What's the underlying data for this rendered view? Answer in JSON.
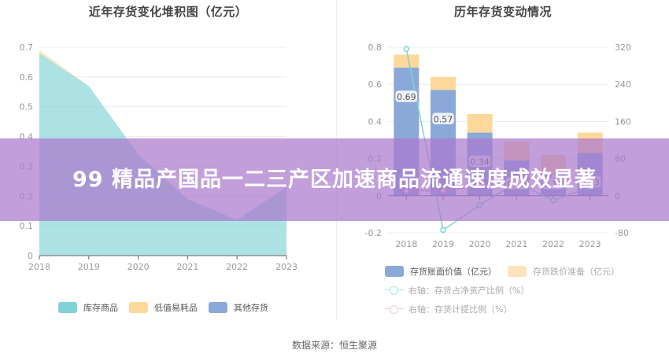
{
  "left_chart": {
    "title": "近年存货变化堆积图（亿元）",
    "legend": [
      {
        "label": "库存商品",
        "color": "#7fd3d6"
      },
      {
        "label": "低值易耗品",
        "color": "#fdd89a"
      },
      {
        "label": "其他存货",
        "color": "#8aa9d9"
      }
    ]
  },
  "right_chart": {
    "title": "历年存货变动情况",
    "legend": [
      {
        "label": "存货账面价值（亿元）",
        "color": "#8aa9d9"
      },
      {
        "label": "存货跌价准备（亿元）",
        "color": "#fde4bd"
      },
      {
        "label": "右轴：存货占净资产比例（%）",
        "color": "#a8e6e6"
      },
      {
        "label": "右轴：存货计提比例（%）",
        "color": "#f0c8dc"
      }
    ]
  },
  "overlay": {
    "text": "99 精品产国品一二三产区加速商品流通速度成效显著"
  },
  "footer": {
    "source": "数据来源：恒生聚源"
  },
  "chart_data": [
    {
      "type": "area",
      "title": "近年存货变化堆积图（亿元）",
      "xlabel": "",
      "ylabel": "",
      "x": [
        "2018",
        "2019",
        "2020",
        "2021",
        "2022",
        "2023"
      ],
      "ylim": [
        0,
        0.7
      ],
      "yticks": [
        "0",
        "0.1",
        "0.2",
        "0.3",
        "0.4",
        "0.5",
        "0.6",
        "0.7"
      ],
      "grid": true,
      "stacked": true,
      "legend_position": "bottom",
      "series": [
        {
          "name": "库存商品",
          "values": [
            0.68,
            0.57,
            0.34,
            0.19,
            0.12,
            0.23
          ],
          "color": "#7fd3d6"
        },
        {
          "name": "低值易耗品",
          "values": [
            0.01,
            0.0,
            0.0,
            0.0,
            0.0,
            0.0
          ],
          "color": "#fdd89a"
        },
        {
          "name": "其他存货",
          "values": [
            0.0,
            0.0,
            0.0,
            0.0,
            0.0,
            0.0
          ],
          "color": "#8aa9d9"
        }
      ]
    },
    {
      "type": "bar",
      "title": "历年存货变动情况",
      "categories": [
        "2018",
        "2019",
        "2020",
        "2021",
        "2022",
        "2023"
      ],
      "ylim": [
        -0.2,
        0.8
      ],
      "yticks": [
        "-0.2",
        "0",
        "0.2",
        "0.4",
        "0.6",
        "0.8"
      ],
      "y2lim": [
        -80,
        320
      ],
      "y2ticks": [
        "-80",
        "0",
        "80",
        "160",
        "240",
        "320"
      ],
      "grid": true,
      "stacked": true,
      "legend_position": "bottom",
      "series": [
        {
          "name": "存货账面价值（亿元）",
          "type": "bar",
          "axis": "left",
          "values": [
            0.69,
            0.57,
            0.34,
            0.19,
            0.12,
            0.23
          ],
          "labels": [
            "0.69",
            "0.57",
            "0.34",
            "0.19",
            "0.12",
            "0.23"
          ],
          "color": "#8aa9d9"
        },
        {
          "name": "存货跌价准备（亿元）",
          "type": "bar",
          "axis": "left",
          "values": [
            0.07,
            0.07,
            0.1,
            0.1,
            0.1,
            0.11
          ],
          "color": "#fdd89a"
        },
        {
          "name": "右轴：存货占净资产比例（%）",
          "type": "line",
          "axis": "right",
          "values": [
            316,
            -74,
            -20,
            28,
            -10,
            18
          ],
          "color": "#7fd3d6"
        },
        {
          "name": "右轴：存货计提比例（%）",
          "type": "line",
          "axis": "right",
          "values": [
            10,
            11,
            21,
            33,
            42,
            26
          ],
          "color": "#e39ac6"
        }
      ]
    }
  ]
}
